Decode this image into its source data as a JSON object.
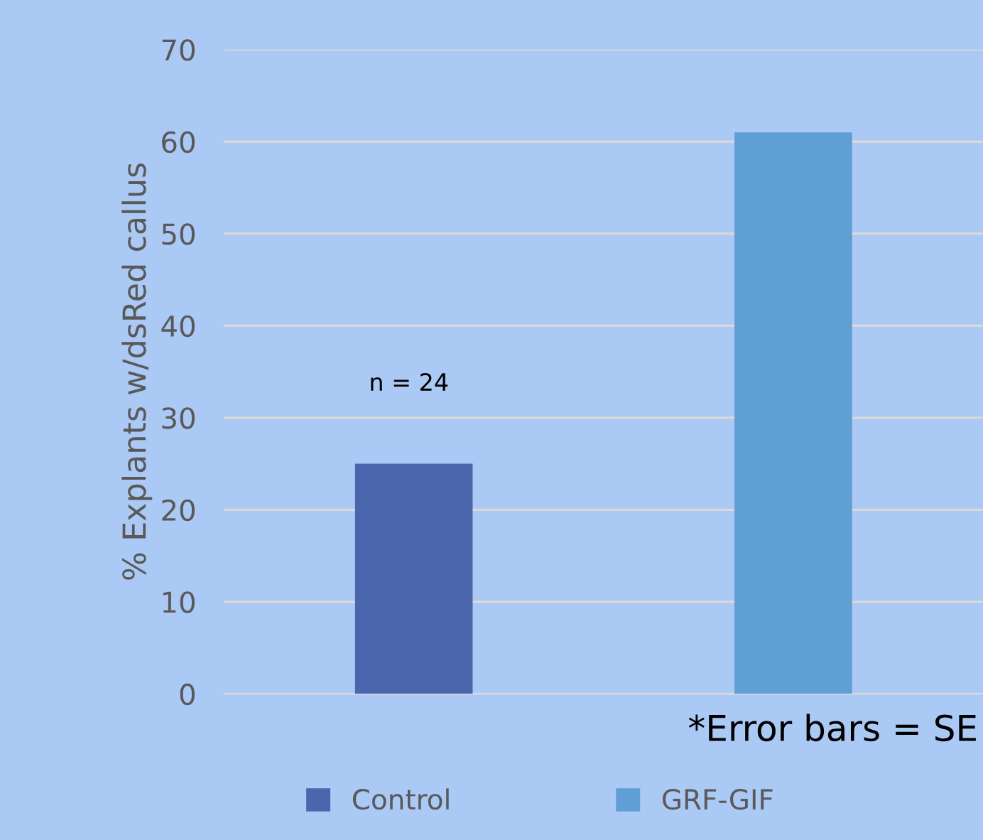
{
  "chart_data": {
    "type": "bar",
    "categories": [
      null,
      null
    ],
    "series": [
      {
        "name": "Control",
        "color": "#4a67ad",
        "values": [
          25,
          null
        ]
      },
      {
        "name": "GRF-GIF",
        "color": "#5f9fd3",
        "values": [
          null,
          61
        ]
      }
    ],
    "ylabel": "% Explants w/dsRed callus",
    "ylim": [
      0,
      70
    ],
    "yticks": [
      0,
      10,
      20,
      30,
      40,
      50,
      60,
      70
    ],
    "grid": "y",
    "legend": "bottom",
    "annotations": [
      "n = 24",
      "*Error bars = SE"
    ]
  }
}
